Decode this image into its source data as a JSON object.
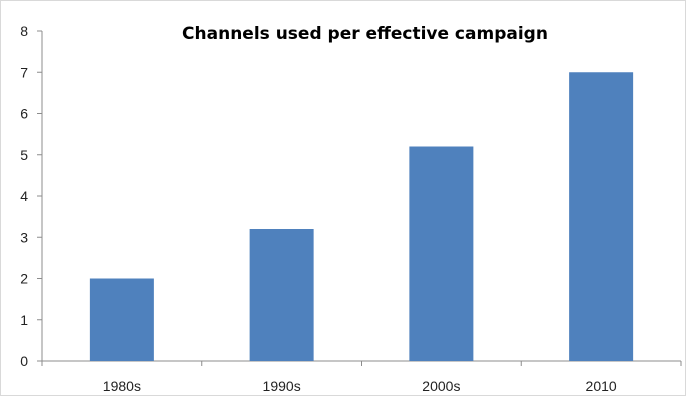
{
  "chart_data": {
    "type": "bar",
    "title": "Channels used per effective campaign",
    "xlabel": "",
    "ylabel": "",
    "categories": [
      "1980s",
      "1990s",
      "2000s",
      "2010"
    ],
    "values": [
      2,
      3.2,
      5.2,
      7
    ],
    "ylim": [
      0,
      8
    ],
    "yticks": [
      "0",
      "1",
      "2",
      "3",
      "4",
      "5",
      "6",
      "7",
      "8"
    ],
    "grid": false,
    "legend": "none",
    "bar_color": "#4f81bd",
    "axis_color": "#8c8c8c"
  }
}
